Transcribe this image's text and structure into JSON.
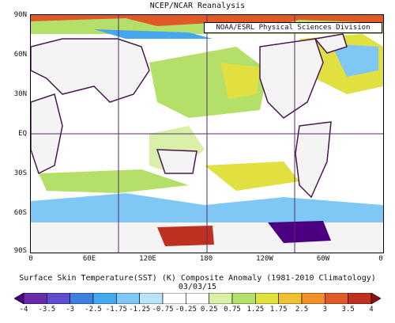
{
  "title": "NCEP/NCAR Reanalysis",
  "credit": "NOAA/ESRL Physical Sciences Division",
  "caption": "Surface Skin Temperature(SST) (K) Composite Anomaly (1981-2010 Climatology)",
  "date": "03/03/15",
  "lat_ticks": [
    "90N",
    "60N",
    "30N",
    "EQ",
    "30S",
    "60S",
    "90S"
  ],
  "lon_ticks": [
    "0",
    "60E",
    "120E",
    "180",
    "120W",
    "60W",
    "0"
  ],
  "colorbar_labels": [
    "-4",
    "-3.5",
    "-3",
    "-2.5",
    "-1.75",
    "-1.25",
    "-0.75",
    "-0.25",
    "0.25",
    "0.75",
    "1.25",
    "1.75",
    "2.5",
    "3",
    "3.5",
    "4"
  ],
  "colorbar_colors": [
    "#4b0082",
    "#6a2ba8",
    "#5b4fd0",
    "#3f7fe0",
    "#45a8ee",
    "#7fc8f5",
    "#b9e3f8",
    "#ffffff",
    "#ffffff",
    "#d8f0a8",
    "#b4e06a",
    "#e0e040",
    "#f0c030",
    "#f09028",
    "#e05a28",
    "#c03020",
    "#901010"
  ],
  "map_colors": {
    "ocean_neutral": "#ffffff",
    "land": "#f4f4f4",
    "coast": "#4a1850",
    "grid": "#5a2a6a"
  }
}
